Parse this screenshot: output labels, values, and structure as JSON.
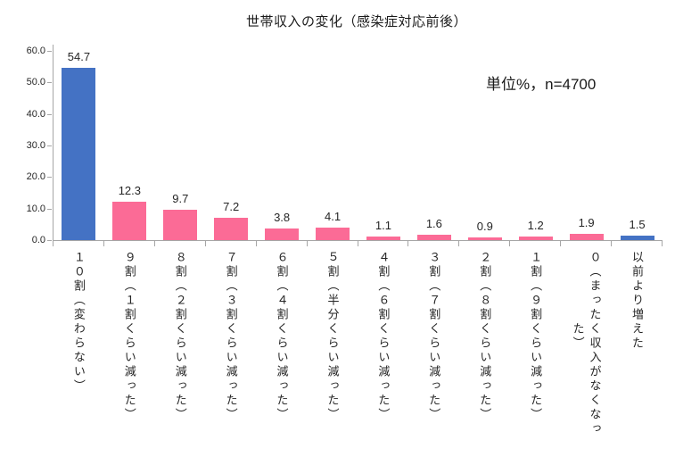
{
  "title": "世帯収入の変化（感染症対応前後）",
  "unit_note": "単位%，n=4700",
  "colors": {
    "blue": "#4472c4",
    "pink": "#fb6b96",
    "axis": "#a6a6a6",
    "text": "#262626"
  },
  "chart_data": {
    "type": "bar",
    "title": "世帯収入の変化（感染症対応前後）",
    "annotation": "単位%，n=4700",
    "unit": "%",
    "n": 4700,
    "categories": [
      "１０割（変わらない）",
      "９割（１割くらい減った）",
      "８割（２割くらい減った）",
      "７割（３割くらい減った）",
      "６割（４割くらい減った）",
      "５割（半分くらい減った）",
      "４割（６割くらい減った）",
      "３割（７割くらい減った）",
      "２割（８割くらい減った）",
      "１割（９割くらい減った）",
      "０（まったく収入がなくなっ\n　　　　　た）",
      "以前より増えた"
    ],
    "values": [
      54.7,
      12.3,
      9.7,
      7.2,
      3.8,
      4.1,
      1.1,
      1.6,
      0.9,
      1.2,
      1.9,
      1.5
    ],
    "value_labels": [
      "54.7",
      "12.3",
      "9.7",
      "7.2",
      "3.8",
      "4.1",
      "1.1",
      "1.6",
      "0.9",
      "1.2",
      "1.9",
      "1.5"
    ],
    "bar_colors": [
      "#4472c4",
      "#fb6b96",
      "#fb6b96",
      "#fb6b96",
      "#fb6b96",
      "#fb6b96",
      "#fb6b96",
      "#fb6b96",
      "#fb6b96",
      "#fb6b96",
      "#fb6b96",
      "#4472c4"
    ],
    "xlabel": "",
    "ylabel": "",
    "ylim": [
      0,
      60
    ],
    "yticks": [
      {
        "value": 0,
        "label": "0.0"
      },
      {
        "value": 10,
        "label": "10.0"
      },
      {
        "value": 20,
        "label": "20.0"
      },
      {
        "value": 30,
        "label": "30.0"
      },
      {
        "value": 40,
        "label": "40.0"
      },
      {
        "value": 50,
        "label": "50.0"
      },
      {
        "value": 60,
        "label": "60.0"
      }
    ],
    "grid": false,
    "legend": null
  }
}
